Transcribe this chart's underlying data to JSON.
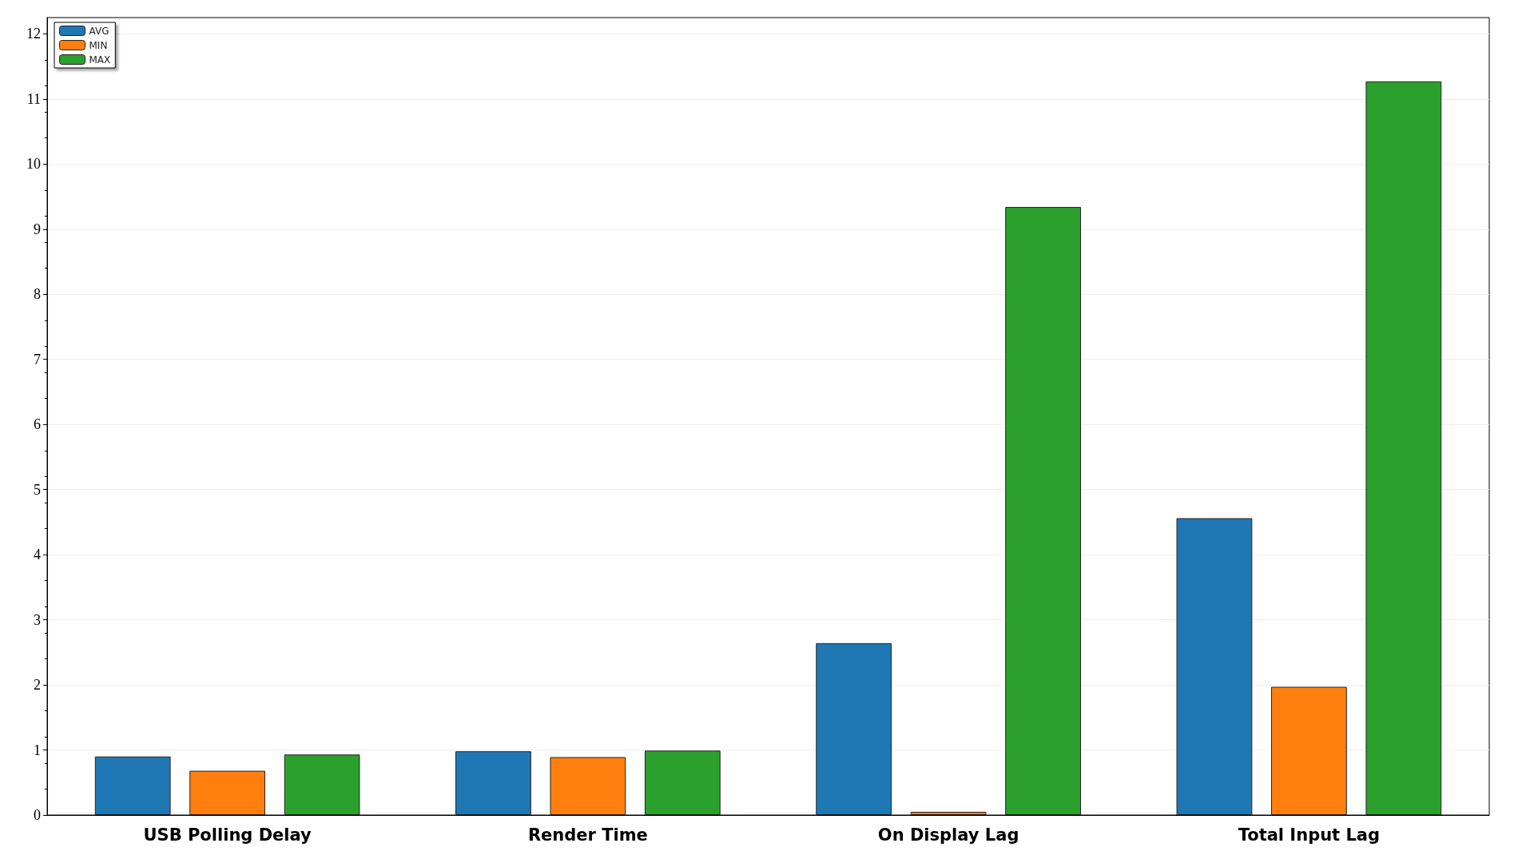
{
  "chart_data": {
    "type": "bar",
    "categories": [
      "USB Polling Delay",
      "Render Time",
      "On Display Lag",
      "Total Input Lag"
    ],
    "series": [
      {
        "name": "AVG",
        "color": "#1f77b4",
        "values": [
          0.9,
          0.98,
          2.64,
          4.56
        ]
      },
      {
        "name": "MIN",
        "color": "#ff7f0e",
        "values": [
          0.68,
          0.89,
          0.05,
          1.97
        ]
      },
      {
        "name": "MAX",
        "color": "#2ca02c",
        "values": [
          0.93,
          0.99,
          9.34,
          11.27
        ]
      }
    ],
    "ylim": [
      0,
      12.25
    ],
    "yticks": [
      0,
      1,
      2,
      3,
      4,
      5,
      6,
      7,
      8,
      9,
      10,
      11,
      12
    ],
    "grid": "y",
    "legend": "top left"
  }
}
